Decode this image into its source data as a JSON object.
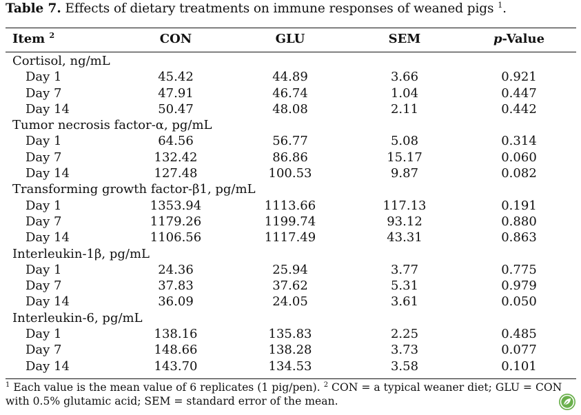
{
  "caption": {
    "label": "Table 7.",
    "text": " Effects of dietary treatments on immune responses of weaned pigs ",
    "sup": "1",
    "end": "."
  },
  "header": {
    "item": "Item",
    "item_sup": "2",
    "con": "CON",
    "glu": "GLU",
    "sem": "SEM",
    "p_italic": "p",
    "p_rest": "-Value"
  },
  "rows": [
    {
      "type": "group",
      "label": "Cortisol, ng/mL"
    },
    {
      "type": "data",
      "label": "Day 1",
      "con": "45.42",
      "glu": "44.89",
      "sem": "3.66",
      "p": "0.921"
    },
    {
      "type": "data",
      "label": "Day 7",
      "con": "47.91",
      "glu": "46.74",
      "sem": "1.04",
      "p": "0.447"
    },
    {
      "type": "data",
      "label": "Day 14",
      "con": "50.47",
      "glu": "48.08",
      "sem": "2.11",
      "p": "0.442"
    },
    {
      "type": "group",
      "label": "Tumor necrosis factor-α, pg/mL"
    },
    {
      "type": "data",
      "label": "Day 1",
      "con": "64.56",
      "glu": "56.77",
      "sem": "5.08",
      "p": "0.314"
    },
    {
      "type": "data",
      "label": "Day 7",
      "con": "132.42",
      "glu": "86.86",
      "sem": "15.17",
      "p": "0.060"
    },
    {
      "type": "data",
      "label": "Day 14",
      "con": "127.48",
      "glu": "100.53",
      "sem": "9.87",
      "p": "0.082"
    },
    {
      "type": "group",
      "label": "Transforming growth factor-β1, pg/mL"
    },
    {
      "type": "data",
      "label": "Day 1",
      "con": "1353.94",
      "glu": "1113.66",
      "sem": "117.13",
      "p": "0.191"
    },
    {
      "type": "data",
      "label": "Day 7",
      "con": "1179.26",
      "glu": "1199.74",
      "sem": "93.12",
      "p": "0.880"
    },
    {
      "type": "data",
      "label": "Day 14",
      "con": "1106.56",
      "glu": "1117.49",
      "sem": "43.31",
      "p": "0.863"
    },
    {
      "type": "group",
      "label": "Interleukin-1β, pg/mL"
    },
    {
      "type": "data",
      "label": "Day 1",
      "con": "24.36",
      "glu": "25.94",
      "sem": "3.77",
      "p": "0.775"
    },
    {
      "type": "data",
      "label": "Day 7",
      "con": "37.83",
      "glu": "37.62",
      "sem": "5.31",
      "p": "0.979"
    },
    {
      "type": "data",
      "label": "Day 14",
      "con": "36.09",
      "glu": "24.05",
      "sem": "3.61",
      "p": "0.050"
    },
    {
      "type": "group",
      "label": "Interleukin-6, pg/mL"
    },
    {
      "type": "data",
      "label": "Day 1",
      "con": "138.16",
      "glu": "135.83",
      "sem": "2.25",
      "p": "0.485"
    },
    {
      "type": "data",
      "label": "Day 7",
      "con": "148.66",
      "glu": "138.28",
      "sem": "3.73",
      "p": "0.077"
    },
    {
      "type": "data",
      "label": "Day 14",
      "con": "143.70",
      "glu": "134.53",
      "sem": "3.58",
      "p": "0.101"
    }
  ],
  "footnote": {
    "sup1": "1",
    "text1": " Each value is the mean value of 6 replicates (1 pig/pen). ",
    "sup2": "2",
    "text2": " CON = a typical weaner diet; GLU = CON with 0.5% glutamic acid; SEM = standard error of the mean."
  },
  "badge": {
    "icon": "leaf-badge-icon",
    "color": "#6ab04c"
  }
}
